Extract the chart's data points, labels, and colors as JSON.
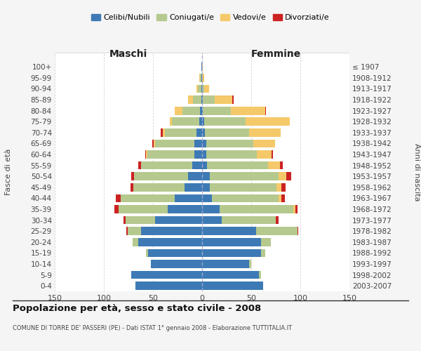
{
  "age_groups": [
    "0-4",
    "5-9",
    "10-14",
    "15-19",
    "20-24",
    "25-29",
    "30-34",
    "35-39",
    "40-44",
    "45-49",
    "50-54",
    "55-59",
    "60-64",
    "65-69",
    "70-74",
    "75-79",
    "80-84",
    "85-89",
    "90-94",
    "95-99",
    "100+"
  ],
  "birth_years": [
    "2003-2007",
    "1998-2002",
    "1993-1997",
    "1988-1992",
    "1983-1987",
    "1978-1982",
    "1973-1977",
    "1968-1972",
    "1963-1967",
    "1958-1962",
    "1953-1957",
    "1948-1952",
    "1943-1947",
    "1938-1942",
    "1933-1937",
    "1928-1932",
    "1923-1927",
    "1918-1922",
    "1913-1917",
    "1908-1912",
    "≤ 1907"
  ],
  "colors": {
    "celibi": "#3d7ab5",
    "coniugati": "#b5c98e",
    "vedovi": "#f5c96a",
    "divorziati": "#cc2222"
  },
  "maschi": {
    "celibi": [
      68,
      72,
      52,
      55,
      65,
      62,
      48,
      35,
      28,
      18,
      14,
      10,
      8,
      8,
      6,
      3,
      2,
      1,
      1,
      1,
      1
    ],
    "coniugati": [
      0,
      0,
      0,
      2,
      6,
      14,
      30,
      50,
      55,
      52,
      55,
      52,
      48,
      40,
      32,
      28,
      18,
      8,
      3,
      1,
      0
    ],
    "vedovi": [
      0,
      0,
      0,
      0,
      0,
      0,
      0,
      0,
      0,
      0,
      0,
      0,
      1,
      1,
      2,
      2,
      8,
      5,
      2,
      1,
      0
    ],
    "divorziati": [
      0,
      0,
      0,
      0,
      0,
      1,
      2,
      4,
      5,
      3,
      3,
      3,
      1,
      2,
      2,
      0,
      0,
      0,
      0,
      0,
      0
    ]
  },
  "femmine": {
    "celibi": [
      62,
      58,
      48,
      60,
      60,
      55,
      20,
      18,
      10,
      8,
      8,
      5,
      4,
      4,
      3,
      2,
      1,
      1,
      0,
      0,
      0
    ],
    "coniugati": [
      0,
      2,
      2,
      4,
      10,
      42,
      55,
      75,
      68,
      68,
      70,
      62,
      52,
      48,
      45,
      42,
      28,
      12,
      2,
      0,
      0
    ],
    "vedovi": [
      0,
      0,
      0,
      0,
      0,
      0,
      0,
      2,
      3,
      5,
      8,
      12,
      15,
      22,
      32,
      45,
      35,
      18,
      5,
      2,
      1
    ],
    "divorziati": [
      0,
      0,
      0,
      0,
      0,
      1,
      3,
      2,
      3,
      4,
      5,
      3,
      1,
      0,
      0,
      0,
      1,
      1,
      0,
      0,
      0
    ]
  },
  "xlim": 150,
  "title": "Popolazione per età, sesso e stato civile - 2008",
  "subtitle": "COMUNE DI TORRE DE' PASSERI (PE) - Dati ISTAT 1° gennaio 2008 - Elaborazione TUTTITALIA.IT",
  "ylabel_left": "Fasce di età",
  "ylabel_right": "Anni di nascita",
  "xlabel_left": "Maschi",
  "xlabel_right": "Femmine",
  "legend_labels": [
    "Celibi/Nubili",
    "Coniugati/e",
    "Vedovi/e",
    "Divorziati/e"
  ],
  "bg_color": "#f5f5f5",
  "plot_bg": "#ffffff"
}
